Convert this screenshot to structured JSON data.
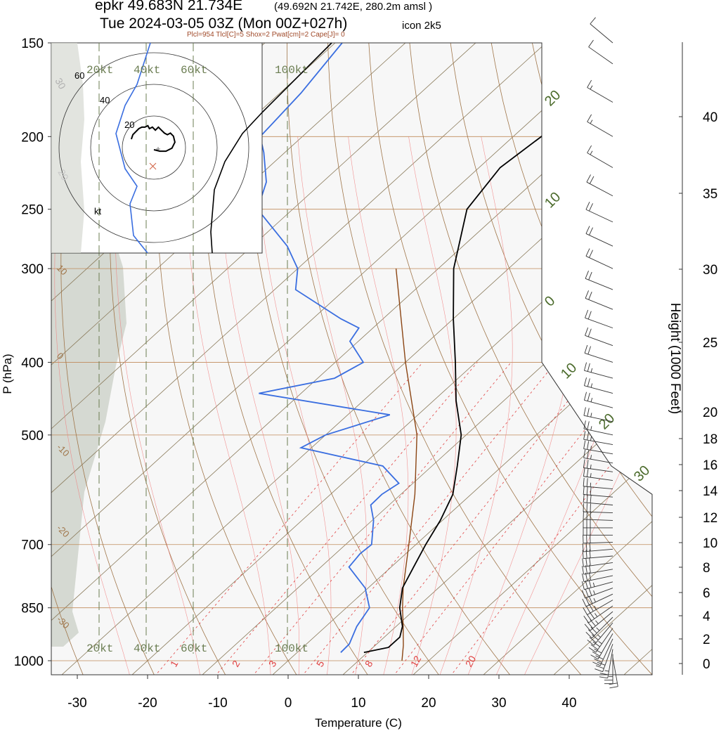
{
  "header": {
    "station": "epkr 49.683N 21.734E",
    "gridpoint": "(49.692N 21.742E, 280.2m amsl )",
    "valid_time": "Tue 2024-03-05 03Z (Mon 00Z+027h)",
    "model": "icon 2k5",
    "indices": "Plcl=954 Tlcl[C]=5 Shox=2 Pwat[cm]=2 Cape[J]= 0"
  },
  "colors": {
    "temperature": "#000000",
    "dewpoint": "#3a6ee0",
    "dry_adiabat": "#a0764a",
    "isobar": "#c08a5a",
    "isotherm": "#8a7a5a",
    "moist_adiabat": "#f07a7a",
    "mixing_ratio": "#e04040",
    "parcel": "#8b4513",
    "hodo_rings": "#333333",
    "shade": "#d5d9d2",
    "frame_bg": "#f7f7f7"
  },
  "chart_data": {
    "type": "skew-t",
    "xlabel": "Temperature (C)",
    "ylabel": "P (hPa)",
    "y2label": "Height (1000 Feet)",
    "x_ticks": [
      "-30",
      "-20",
      "-10",
      "0",
      "10",
      "20",
      "30",
      "40"
    ],
    "y_ticks": [
      "150",
      "200",
      "250",
      "300",
      "400",
      "500",
      "700",
      "850",
      "1000"
    ],
    "height_ticks": [
      "0",
      "2",
      "4",
      "6",
      "8",
      "10",
      "12",
      "14",
      "16",
      "18",
      "20",
      "25",
      "30",
      "35",
      "40"
    ],
    "mixing_ratio_labels": [
      "1",
      "2",
      "3",
      "5",
      "8",
      "12",
      "20"
    ],
    "isotherm_labels": [
      "20",
      "10",
      "0",
      "10",
      "20",
      "30"
    ],
    "dry_adiabat_labels": [
      "30",
      "20",
      "10",
      "0",
      "-10",
      "-20",
      "-30"
    ],
    "temperature_profile": [
      {
        "p": 975,
        "t": 9.5
      },
      {
        "p": 960,
        "t": 12.2
      },
      {
        "p": 930,
        "t": 12.2
      },
      {
        "p": 900,
        "t": 10.9
      },
      {
        "p": 850,
        "t": 7.6
      },
      {
        "p": 800,
        "t": 4.9
      },
      {
        "p": 750,
        "t": 3.2
      },
      {
        "p": 700,
        "t": 1.4
      },
      {
        "p": 650,
        "t": -0.3
      },
      {
        "p": 600,
        "t": -2.6
      },
      {
        "p": 550,
        "t": -6.4
      },
      {
        "p": 500,
        "t": -10.7
      },
      {
        "p": 450,
        "t": -16.8
      },
      {
        "p": 400,
        "t": -22.9
      },
      {
        "p": 350,
        "t": -30.0
      },
      {
        "p": 300,
        "t": -37.8
      },
      {
        "p": 250,
        "t": -45.2
      },
      {
        "p": 220,
        "t": -47.0
      },
      {
        "p": 200,
        "t": -46.0
      },
      {
        "p": 175,
        "t": -47.0
      },
      {
        "p": 150,
        "t": -49.0
      }
    ],
    "dewpoint_profile": [
      {
        "p": 975,
        "t": 6.2
      },
      {
        "p": 950,
        "t": 6.1
      },
      {
        "p": 900,
        "t": 4.4
      },
      {
        "p": 850,
        "t": 3.3
      },
      {
        "p": 800,
        "t": -0.4
      },
      {
        "p": 750,
        "t": -6.0
      },
      {
        "p": 720,
        "t": -6.5
      },
      {
        "p": 700,
        "t": -6.3
      },
      {
        "p": 650,
        "t": -9.8
      },
      {
        "p": 620,
        "t": -12.6
      },
      {
        "p": 600,
        "t": -12.7
      },
      {
        "p": 580,
        "t": -12.0
      },
      {
        "p": 550,
        "t": -17.0
      },
      {
        "p": 520,
        "t": -31.5
      },
      {
        "p": 500,
        "t": -30.0
      },
      {
        "p": 470,
        "t": -24.0
      },
      {
        "p": 440,
        "t": -46.0
      },
      {
        "p": 420,
        "t": -37.6
      },
      {
        "p": 400,
        "t": -36.0
      },
      {
        "p": 375,
        "t": -41.2
      },
      {
        "p": 360,
        "t": -42.0
      },
      {
        "p": 350,
        "t": -46.0
      },
      {
        "p": 320,
        "t": -57.0
      },
      {
        "p": 300,
        "t": -60.0
      },
      {
        "p": 280,
        "t": -65.0
      },
      {
        "p": 250,
        "t": -75.0
      },
      {
        "p": 230,
        "t": -78.0
      },
      {
        "p": 210,
        "t": -83.0
      },
      {
        "p": 200,
        "t": -86.0
      },
      {
        "p": 175,
        "t": -87.0
      },
      {
        "p": 150,
        "t": -89.0
      }
    ],
    "parcel_profile": [
      {
        "p": 1000,
        "t": 16.2
      },
      {
        "p": 954,
        "t": 14.0
      },
      {
        "p": 900,
        "t": 11.0
      },
      {
        "p": 850,
        "t": 8.0
      },
      {
        "p": 800,
        "t": 5.0
      },
      {
        "p": 700,
        "t": -1.0
      },
      {
        "p": 600,
        "t": -8.0
      },
      {
        "p": 500,
        "t": -17.0
      },
      {
        "p": 400,
        "t": -30.0
      },
      {
        "p": 300,
        "t": -46.0
      }
    ],
    "wind_profile": [
      {
        "p": 990,
        "dir": 170,
        "spd": 20
      },
      {
        "p": 980,
        "dir": 180,
        "spd": 25
      },
      {
        "p": 965,
        "dir": 190,
        "spd": 28
      },
      {
        "p": 950,
        "dir": 200,
        "spd": 30
      },
      {
        "p": 935,
        "dir": 205,
        "spd": 32
      },
      {
        "p": 920,
        "dir": 210,
        "spd": 34
      },
      {
        "p": 905,
        "dir": 215,
        "spd": 35
      },
      {
        "p": 890,
        "dir": 220,
        "spd": 36
      },
      {
        "p": 875,
        "dir": 225,
        "spd": 37
      },
      {
        "p": 860,
        "dir": 230,
        "spd": 38
      },
      {
        "p": 845,
        "dir": 235,
        "spd": 38
      },
      {
        "p": 830,
        "dir": 240,
        "spd": 38
      },
      {
        "p": 815,
        "dir": 245,
        "spd": 37
      },
      {
        "p": 800,
        "dir": 250,
        "spd": 36
      },
      {
        "p": 785,
        "dir": 255,
        "spd": 35
      },
      {
        "p": 770,
        "dir": 258,
        "spd": 34
      },
      {
        "p": 755,
        "dir": 260,
        "spd": 34
      },
      {
        "p": 740,
        "dir": 262,
        "spd": 33
      },
      {
        "p": 725,
        "dir": 265,
        "spd": 33
      },
      {
        "p": 710,
        "dir": 265,
        "spd": 32
      },
      {
        "p": 695,
        "dir": 268,
        "spd": 32
      },
      {
        "p": 680,
        "dir": 270,
        "spd": 32
      },
      {
        "p": 665,
        "dir": 270,
        "spd": 31
      },
      {
        "p": 650,
        "dir": 272,
        "spd": 31
      },
      {
        "p": 635,
        "dir": 272,
        "spd": 30
      },
      {
        "p": 620,
        "dir": 275,
        "spd": 30
      },
      {
        "p": 605,
        "dir": 275,
        "spd": 30
      },
      {
        "p": 590,
        "dir": 275,
        "spd": 29
      },
      {
        "p": 575,
        "dir": 278,
        "spd": 29
      },
      {
        "p": 560,
        "dir": 278,
        "spd": 28
      },
      {
        "p": 545,
        "dir": 280,
        "spd": 28
      },
      {
        "p": 530,
        "dir": 280,
        "spd": 28
      },
      {
        "p": 515,
        "dir": 280,
        "spd": 27
      },
      {
        "p": 500,
        "dir": 282,
        "spd": 27
      },
      {
        "p": 480,
        "dir": 282,
        "spd": 26
      },
      {
        "p": 460,
        "dir": 285,
        "spd": 26
      },
      {
        "p": 440,
        "dir": 285,
        "spd": 25
      },
      {
        "p": 420,
        "dir": 285,
        "spd": 25
      },
      {
        "p": 400,
        "dir": 288,
        "spd": 24
      },
      {
        "p": 380,
        "dir": 290,
        "spd": 24
      },
      {
        "p": 360,
        "dir": 290,
        "spd": 23
      },
      {
        "p": 340,
        "dir": 292,
        "spd": 22
      },
      {
        "p": 320,
        "dir": 292,
        "spd": 22
      },
      {
        "p": 300,
        "dir": 295,
        "spd": 21
      },
      {
        "p": 280,
        "dir": 295,
        "spd": 21
      },
      {
        "p": 260,
        "dir": 295,
        "spd": 20
      },
      {
        "p": 240,
        "dir": 298,
        "spd": 20
      },
      {
        "p": 220,
        "dir": 300,
        "spd": 19
      },
      {
        "p": 200,
        "dir": 300,
        "spd": 18
      },
      {
        "p": 180,
        "dir": 300,
        "spd": 16
      },
      {
        "p": 160,
        "dir": 305,
        "spd": 14
      },
      {
        "p": 150,
        "dir": 310,
        "spd": 12
      }
    ],
    "hodograph": {
      "ring_labels": [
        "20",
        "40",
        "60"
      ],
      "unit_label": "kt",
      "points": [
        [
          -15,
          0
        ],
        [
          -14,
          3
        ],
        [
          -12,
          5
        ],
        [
          -10,
          7
        ],
        [
          -8,
          8
        ],
        [
          -6,
          8
        ],
        [
          -4,
          9
        ],
        [
          -3,
          7
        ],
        [
          -1,
          8
        ],
        [
          1,
          6
        ],
        [
          3,
          8
        ],
        [
          5,
          6
        ],
        [
          7,
          4
        ],
        [
          9,
          3
        ],
        [
          11,
          4
        ],
        [
          13,
          2
        ],
        [
          14,
          -2
        ],
        [
          12,
          -6
        ],
        [
          8,
          -8
        ],
        [
          4,
          -8
        ],
        [
          0,
          -7
        ]
      ]
    },
    "wind_scale_labels": [
      "20kt",
      "40kt",
      "60kt",
      "100kt"
    ]
  }
}
